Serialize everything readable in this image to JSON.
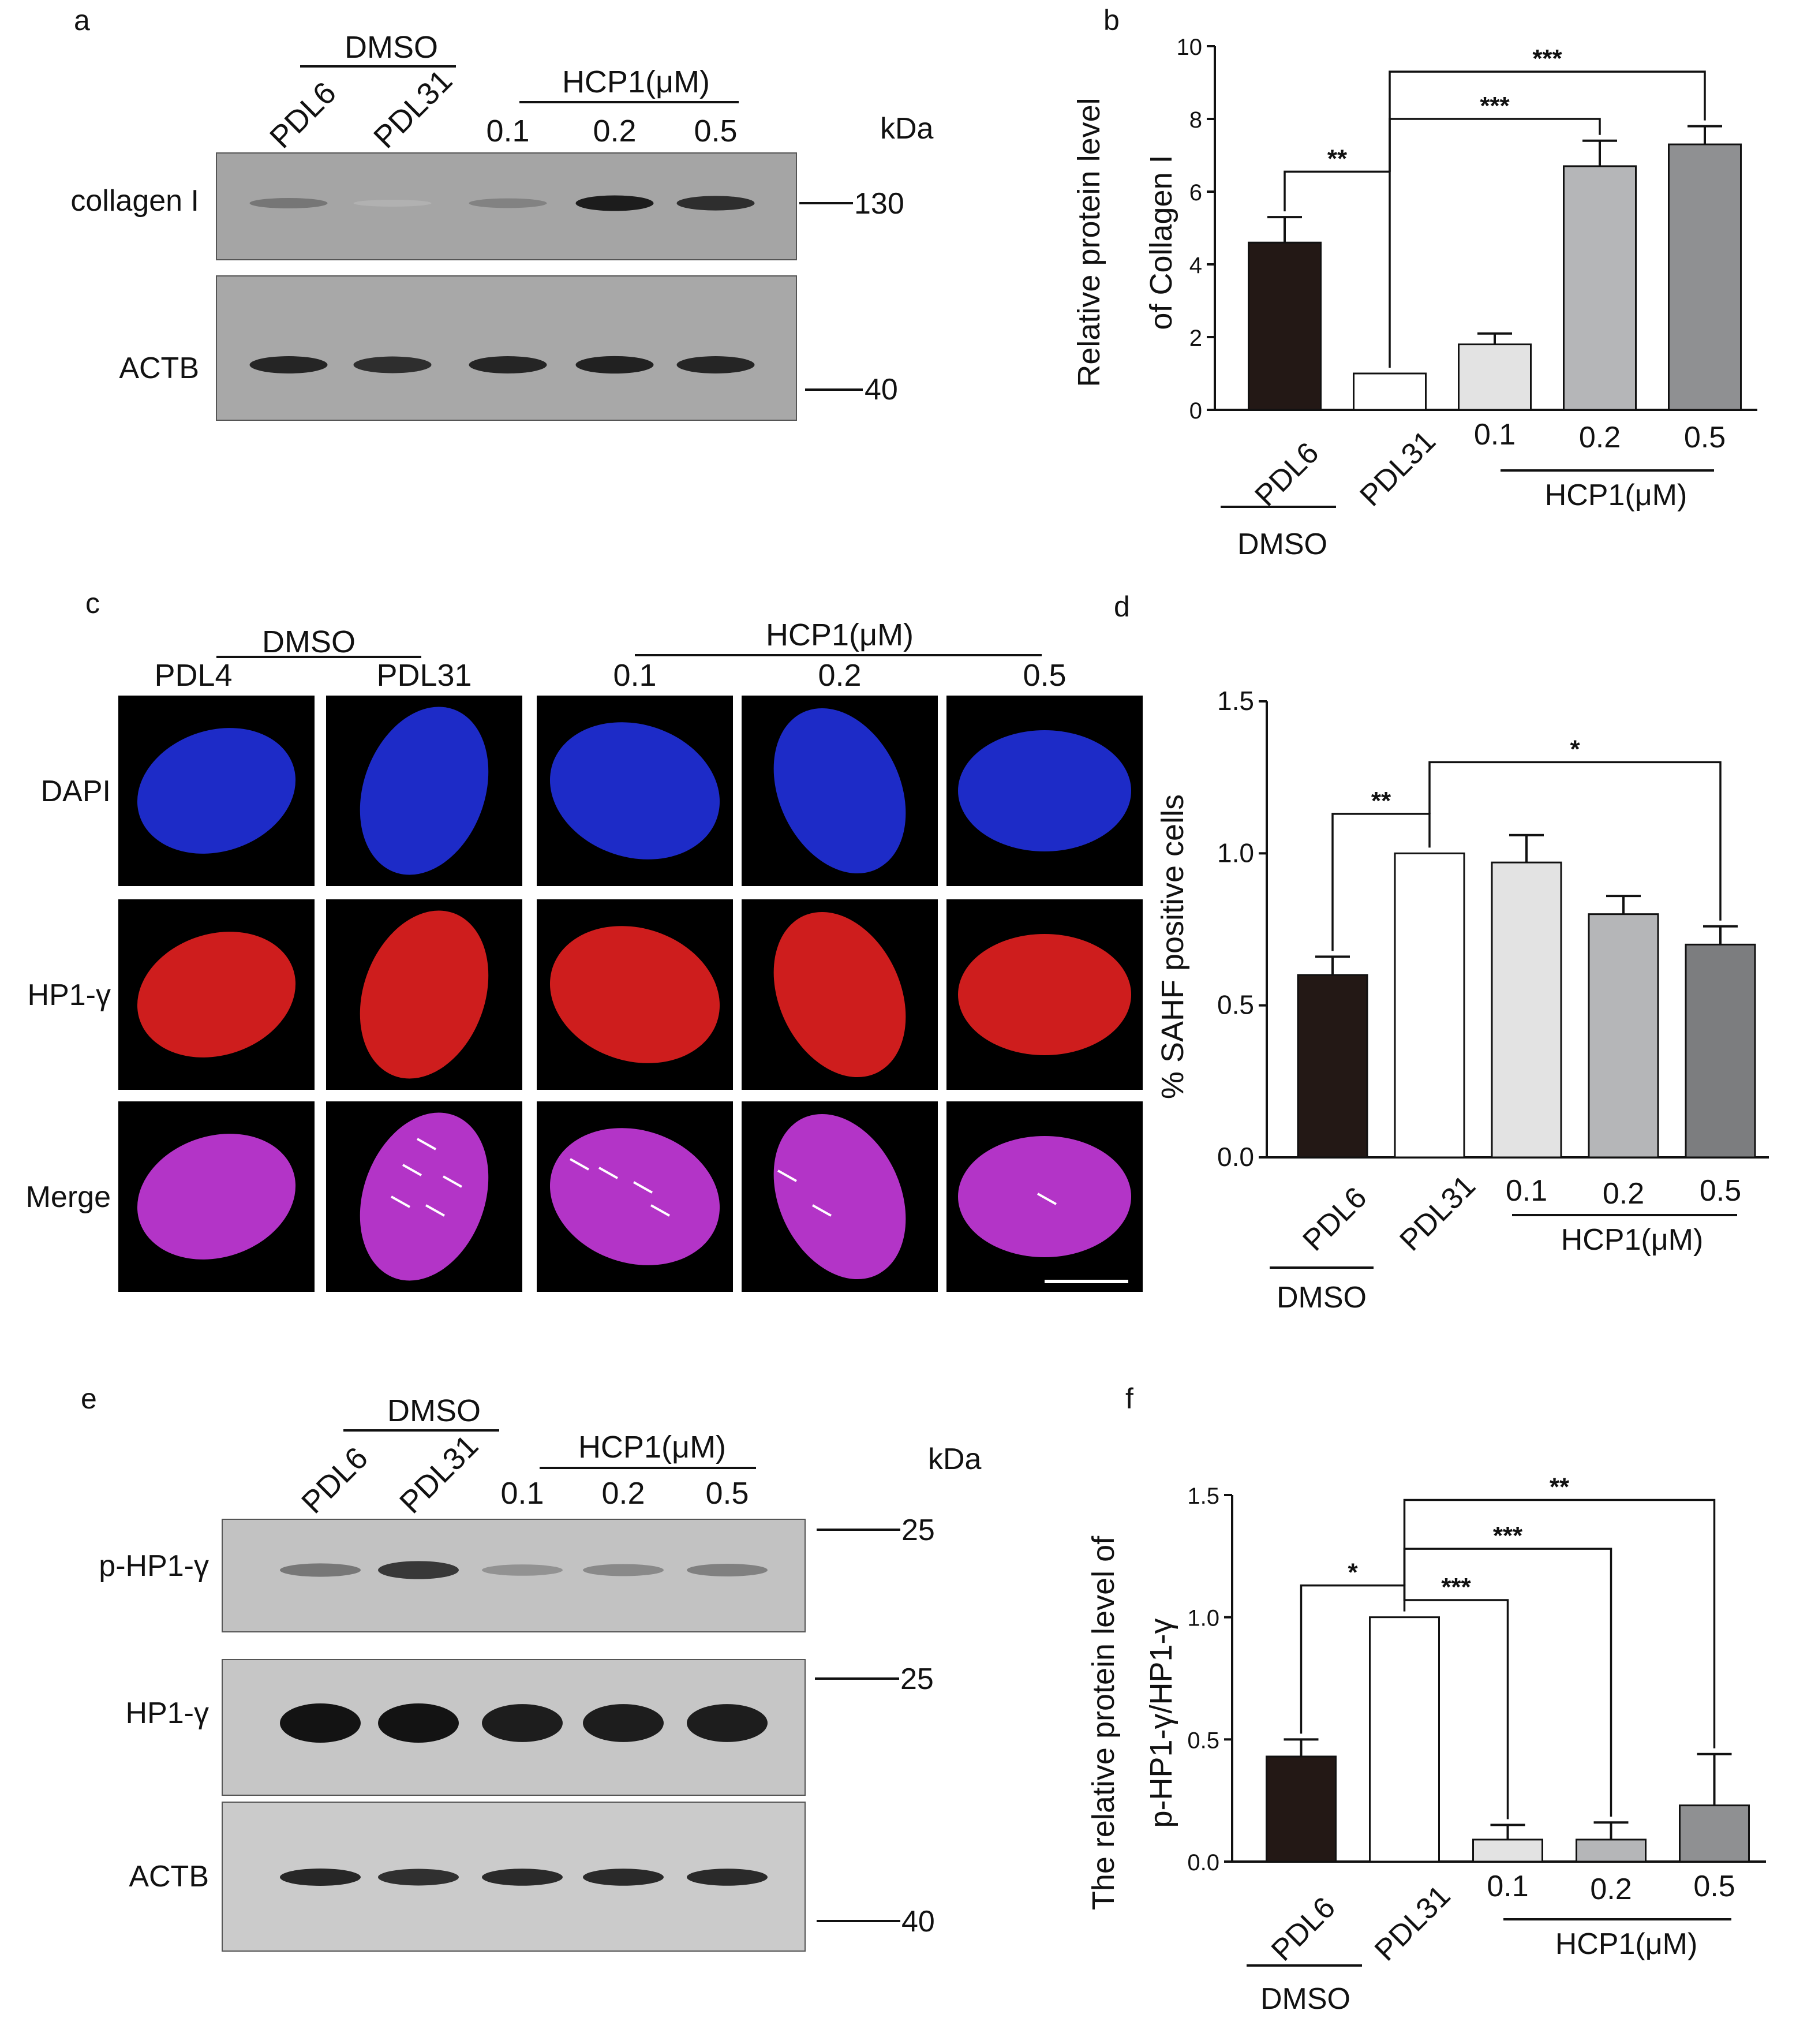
{
  "panels": {
    "a": {
      "letter": "a",
      "group_dmso": "DMSO",
      "group_hcp1": "HCP1(μM)",
      "lanes": [
        "PDL6",
        "PDL31",
        "0.1",
        "0.2",
        "0.5"
      ],
      "unit": "kDa",
      "blots": [
        {
          "label": "collagen I",
          "bands": [
            0.45,
            0.12,
            0.38,
            0.95,
            0.85
          ]
        },
        {
          "label": "ACTB",
          "bands": [
            0.9,
            0.85,
            0.9,
            0.92,
            0.9
          ]
        }
      ],
      "markers": [
        "130",
        "40"
      ]
    },
    "b": {
      "letter": "b",
      "ylabel_line1": "Relative protein level",
      "ylabel_line2": "of Collagen I",
      "group_dmso": "DMSO",
      "group_hcp1": "HCP1(μM)"
    },
    "c": {
      "letter": "c",
      "group_dmso": "DMSO",
      "group_hcp1": "HCP1(μM)",
      "columns": [
        "PDL4",
        "PDL31",
        "0.1",
        "0.2",
        "0.5"
      ],
      "rows": [
        "DAPI",
        "HP1-γ",
        "Merge"
      ]
    },
    "d": {
      "letter": "d",
      "ylabel": "% SAHF positive cells",
      "group_dmso": "DMSO",
      "group_hcp1": "HCP1(μM)"
    },
    "e": {
      "letter": "e",
      "group_dmso": "DMSO",
      "group_hcp1": "HCP1(μM)",
      "lanes": [
        "PDL6",
        "PDL31",
        "0.1",
        "0.2",
        "0.5"
      ],
      "unit": "kDa",
      "blots": [
        {
          "label": "p-HP1-γ",
          "bands": [
            0.45,
            0.8,
            0.3,
            0.35,
            0.4
          ]
        },
        {
          "label": "HP1-γ",
          "bands": [
            1.0,
            1.0,
            0.95,
            0.95,
            0.95
          ]
        },
        {
          "label": "ACTB",
          "bands": [
            0.9,
            0.85,
            0.88,
            0.88,
            0.88
          ]
        }
      ],
      "markers": [
        "25",
        "25",
        "40"
      ]
    },
    "f": {
      "letter": "f",
      "ylabel_line1": "The relative protein level of",
      "ylabel_line2": "p-HP1-γ/HP1-γ",
      "group_dmso": "DMSO",
      "group_hcp1": "HCP1(μM)"
    }
  },
  "chart_data": [
    {
      "type": "bar",
      "panel": "b",
      "categories": [
        "PDL6",
        "PDL31",
        "0.1",
        "0.2",
        "0.5"
      ],
      "values": [
        4.6,
        1.0,
        1.8,
        6.7,
        7.3
      ],
      "errors": [
        0.7,
        0.0,
        0.3,
        0.7,
        0.5
      ],
      "colors": [
        "#231815",
        "#ffffff",
        "#e3e3e3",
        "#b5b6b8",
        "#8f9092"
      ],
      "ylim": [
        0,
        10
      ],
      "yticks": [
        "0",
        "2",
        "4",
        "6",
        "8",
        "10"
      ],
      "significance": [
        {
          "from": 0,
          "to": 1,
          "label": "**"
        },
        {
          "from": 1,
          "to": 3,
          "label": "***"
        },
        {
          "from": 1,
          "to": 4,
          "label": "***"
        }
      ]
    },
    {
      "type": "bar",
      "panel": "d",
      "categories": [
        "PDL6",
        "PDL31",
        "0.1",
        "0.2",
        "0.5"
      ],
      "values": [
        0.6,
        1.0,
        0.97,
        0.8,
        0.7
      ],
      "errors": [
        0.06,
        0.0,
        0.09,
        0.06,
        0.06
      ],
      "colors": [
        "#231815",
        "#ffffff",
        "#e3e3e3",
        "#b5b6b8",
        "#7c7d7f"
      ],
      "ylim": [
        0,
        1.5
      ],
      "yticks": [
        "0.0",
        "0.5",
        "1.0",
        "1.5"
      ],
      "significance": [
        {
          "from": 0,
          "to": 1,
          "label": "**"
        },
        {
          "from": 1,
          "to": 4,
          "label": "*"
        }
      ]
    },
    {
      "type": "bar",
      "panel": "f",
      "categories": [
        "PDL6",
        "PDL31",
        "0.1",
        "0.2",
        "0.5"
      ],
      "values": [
        0.43,
        1.0,
        0.09,
        0.09,
        0.23
      ],
      "errors": [
        0.07,
        0.0,
        0.06,
        0.07,
        0.21
      ],
      "colors": [
        "#231815",
        "#ffffff",
        "#e3e3e3",
        "#b5b6b8",
        "#8f9092"
      ],
      "ylim": [
        0,
        1.5
      ],
      "yticks": [
        "0.0",
        "0.5",
        "1.0",
        "1.5"
      ],
      "significance": [
        {
          "from": 0,
          "to": 1,
          "label": "*"
        },
        {
          "from": 1,
          "to": 2,
          "label": "***"
        },
        {
          "from": 1,
          "to": 3,
          "label": "***"
        },
        {
          "from": 1,
          "to": 4,
          "label": "**"
        }
      ]
    }
  ]
}
